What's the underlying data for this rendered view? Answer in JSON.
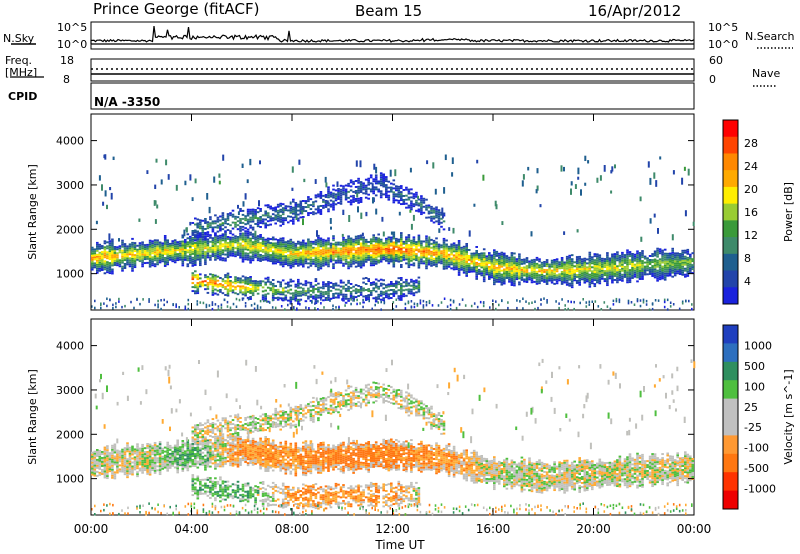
{
  "header": {
    "station": "Prince George (fitACF)",
    "beam": "Beam 15",
    "date": "16/Apr/2012"
  },
  "panels": {
    "nsky": {
      "left_label": "N.Sky",
      "left_ticks": [
        "10^5",
        "10^0"
      ],
      "right_label": "N.Search",
      "right_ticks": [
        "10^5",
        "10^0"
      ]
    },
    "freq": {
      "left_label_top": "Freq.",
      "left_label_unit": "[MHz]",
      "left_ticks": [
        "18",
        "8"
      ],
      "right_label": "Nave",
      "right_ticks": [
        "60",
        "0"
      ]
    },
    "cpid": {
      "label": "CPID",
      "value": "N/A -3350"
    }
  },
  "power_panel": {
    "ylabel": "Slant Range [km]",
    "yticks": [
      "4000",
      "3000",
      "2000",
      "1000"
    ],
    "colorbar_label": "Power [dB]",
    "colorbar_ticks": [
      "28",
      "24",
      "20",
      "16",
      "12",
      "8",
      "4"
    ],
    "colorbar_colors": [
      "#ff0000",
      "#ff4400",
      "#ff8800",
      "#ffaa00",
      "#ffee00",
      "#99cc33",
      "#3a9a3a",
      "#3e8a6a",
      "#1f5f8f",
      "#2244aa",
      "#1a22dd"
    ]
  },
  "velocity_panel": {
    "ylabel": "Slant Range [km]",
    "yticks": [
      "4000",
      "3000",
      "2000",
      "1000"
    ],
    "colorbar_label": "Velocity [m s^-1]",
    "colorbar_ticks": [
      "1000",
      "500",
      "100",
      "25",
      "-25",
      "-100",
      "-500",
      "-1000"
    ],
    "colorbar_colors": [
      "#1f3fbf",
      "#2d6fbf",
      "#2f8f5f",
      "#4fbf3f",
      "#c0c0c0",
      "#c0c0c0",
      "#ff9933",
      "#ff7711",
      "#ff3300",
      "#ee0000"
    ]
  },
  "xaxis": {
    "label": "Time UT",
    "ticks": [
      "00:00",
      "04:00",
      "08:00",
      "12:00",
      "16:00",
      "20:00",
      "00:00"
    ]
  },
  "chart_data": [
    {
      "type": "heatmap",
      "title": "Power",
      "xlabel": "Time UT",
      "ylabel": "Slant Range [km]",
      "xlim": [
        0,
        24
      ],
      "ylim": [
        180,
        4600
      ],
      "colorbar": {
        "label": "Power [dB]",
        "range": [
          0,
          30
        ]
      },
      "features": [
        {
          "name": "main band",
          "x": [
            0,
            2,
            4,
            6,
            8,
            10,
            12,
            14,
            16,
            18,
            20,
            22,
            24
          ],
          "y": [
            1350,
            1450,
            1550,
            1650,
            1450,
            1500,
            1550,
            1450,
            1150,
            1050,
            1100,
            1200,
            1250
          ],
          "power": [
            22,
            20,
            18,
            18,
            20,
            24,
            26,
            22,
            20,
            20,
            18,
            16,
            14
          ]
        },
        {
          "name": "upper arc",
          "x": [
            4,
            6,
            8,
            10,
            11.5,
            13,
            14
          ],
          "y": [
            2000,
            2200,
            2400,
            2800,
            3000,
            2600,
            2200
          ],
          "power": [
            10,
            10,
            8,
            6,
            6,
            8,
            10
          ]
        },
        {
          "name": "low range band",
          "x": [
            4,
            6,
            8,
            10,
            12,
            13
          ],
          "y": [
            850,
            700,
            600,
            620,
            650,
            700
          ],
          "power": [
            26,
            22,
            12,
            10,
            10,
            12
          ]
        }
      ]
    },
    {
      "type": "heatmap",
      "title": "Velocity",
      "xlabel": "Time UT",
      "ylabel": "Slant Range [km]",
      "xlim": [
        0,
        24
      ],
      "ylim": [
        180,
        4600
      ],
      "colorbar": {
        "label": "Velocity [m s^-1]",
        "range": [
          -1000,
          1000
        ]
      },
      "features": [
        {
          "name": "main band",
          "x": [
            0,
            2,
            4,
            6,
            8,
            10,
            12,
            14,
            16,
            18,
            20,
            22,
            24
          ],
          "y": [
            1350,
            1450,
            1550,
            1650,
            1450,
            1500,
            1550,
            1450,
            1150,
            1050,
            1100,
            1200,
            1250
          ],
          "velocity": [
            0,
            0,
            100,
            -100,
            -100,
            -150,
            -150,
            -100,
            0,
            0,
            0,
            0,
            0
          ]
        },
        {
          "name": "upper arc",
          "x": [
            4,
            6,
            8,
            10,
            11.5,
            13,
            14
          ],
          "y": [
            2000,
            2200,
            2400,
            2800,
            3000,
            2600,
            2200
          ],
          "velocity": [
            0,
            0,
            0,
            0,
            0,
            0,
            0
          ]
        },
        {
          "name": "low range band",
          "x": [
            4,
            6,
            8,
            10,
            12,
            13
          ],
          "y": [
            850,
            700,
            600,
            620,
            650,
            700
          ],
          "velocity": [
            50,
            100,
            -100,
            -100,
            -80,
            0
          ]
        }
      ]
    }
  ]
}
